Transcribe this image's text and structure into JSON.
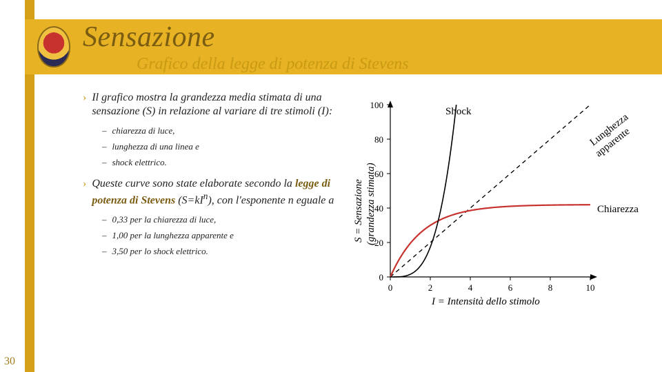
{
  "page_number": "30",
  "title": "Sensazione",
  "subtitle": "Grafico della legge di potenza di Stevens",
  "bullets": {
    "b1_pre": "Il grafico mostra la grandezza media stimata di una sensazione (S) in relazione al variare di tre stimoli (I):",
    "b1_subs": [
      "chiarezza di luce,",
      "lunghezza di una linea e",
      "shock elettrico."
    ],
    "b2_pre": "Queste curve sono state elaborate secondo la ",
    "b2_bold": "legge di potenza di Stevens",
    "b2_post": " (S=kI",
    "b2_sup": "n",
    "b2_tail": "), con l'esponente n eguale a",
    "b2_subs": [
      "0,33 per la chiarezza di luce,",
      "1,00 per la lunghezza apparente e",
      "3,50 per lo shock elettrico."
    ]
  },
  "chart": {
    "xlim": [
      0,
      10
    ],
    "ylim": [
      0,
      100
    ],
    "xticks": [
      0,
      2,
      4,
      6,
      8,
      10
    ],
    "yticks": [
      0,
      20,
      40,
      60,
      80,
      100
    ],
    "xlabel": "I = Intensità dello stimolo",
    "ylabel_line1": "S = Sensazione",
    "ylabel_line2": "(grandezza stimata)",
    "label_shock": "Shock",
    "label_lung": "Lunghezza\napparente",
    "label_chiar": "Chiarezza",
    "colors": {
      "chiarezza": "#c7322f",
      "shock": "#000000",
      "lunghezza": "#000000",
      "axis": "#000000"
    }
  }
}
